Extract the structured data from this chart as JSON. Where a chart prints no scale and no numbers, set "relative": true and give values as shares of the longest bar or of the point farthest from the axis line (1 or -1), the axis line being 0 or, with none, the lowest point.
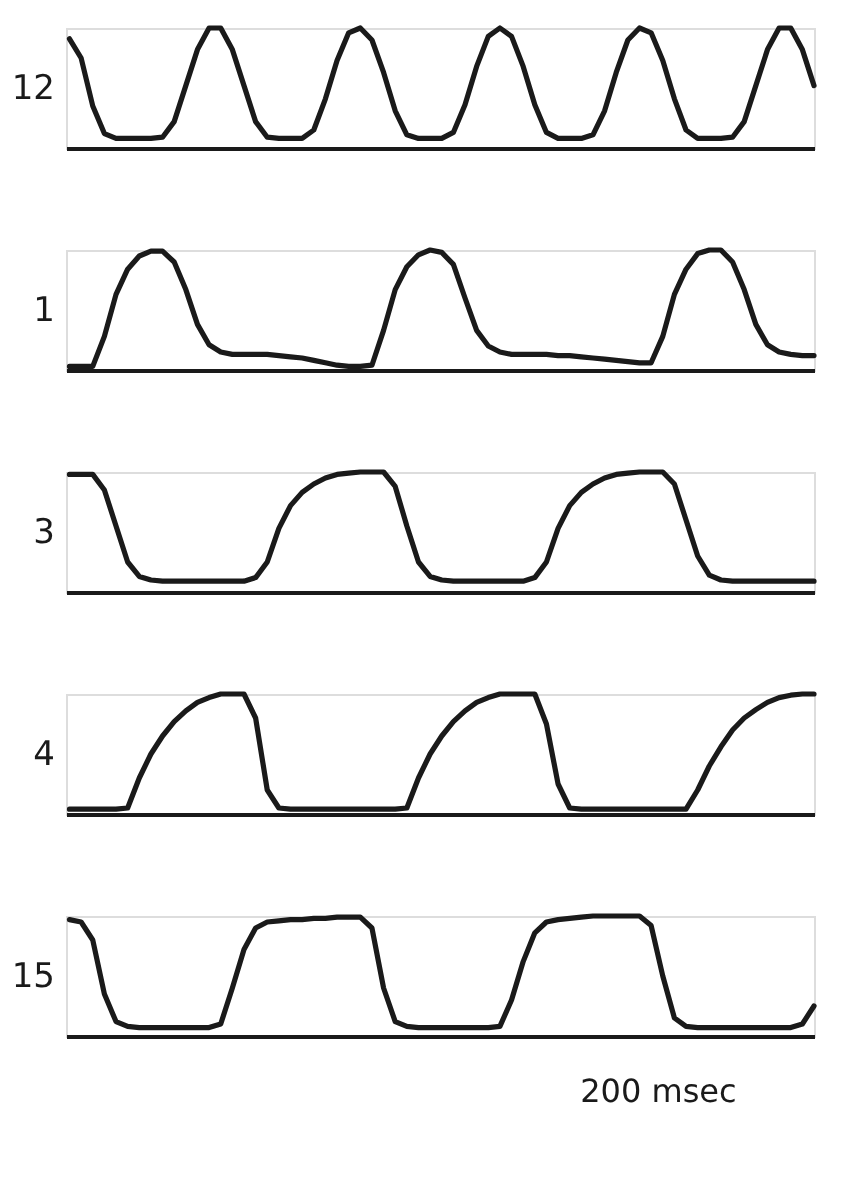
{
  "chart_data": [
    {
      "type": "line",
      "relative": true,
      "ylabel": "12",
      "tick_labels": false,
      "grid": false,
      "categories": [
        null,
        null,
        null,
        null,
        null,
        null,
        null,
        null,
        null,
        null,
        null,
        null,
        null,
        null,
        null,
        null,
        null,
        null,
        null,
        null,
        null,
        null,
        null,
        null,
        null,
        null,
        null,
        null,
        null,
        null,
        null,
        null,
        null,
        null,
        null,
        null,
        null,
        null,
        null,
        null,
        null,
        null,
        null,
        null,
        null,
        null,
        null,
        null,
        null,
        null,
        null,
        null,
        null,
        null,
        null,
        null,
        null,
        null,
        null,
        null,
        null,
        null,
        null,
        null,
        null
      ],
      "series": [
        {
          "color": "#1a1a1a",
          "values": [
            0.91,
            0.75,
            0.35,
            0.12,
            0.08,
            0.08,
            0.08,
            0.08,
            0.09,
            0.22,
            0.52,
            0.82,
            1.0,
            1.0,
            0.82,
            0.52,
            0.22,
            0.09,
            0.08,
            0.08,
            0.08,
            0.15,
            0.41,
            0.73,
            0.96,
            1.0,
            0.9,
            0.63,
            0.31,
            0.11,
            0.08,
            0.08,
            0.08,
            0.13,
            0.36,
            0.68,
            0.93,
            1.0,
            0.93,
            0.68,
            0.36,
            0.13,
            0.08,
            0.08,
            0.08,
            0.11,
            0.31,
            0.63,
            0.9,
            1.0,
            0.96,
            0.73,
            0.41,
            0.15,
            0.08,
            0.08,
            0.08,
            0.09,
            0.22,
            0.52,
            0.82,
            1.0,
            1.0,
            0.82,
            0.52
          ]
        }
      ]
    },
    {
      "type": "line",
      "relative": true,
      "ylabel": "1",
      "tick_labels": false,
      "grid": false,
      "categories": [
        null,
        null,
        null,
        null,
        null,
        null,
        null,
        null,
        null,
        null,
        null,
        null,
        null,
        null,
        null,
        null,
        null,
        null,
        null,
        null,
        null,
        null,
        null,
        null,
        null,
        null,
        null,
        null,
        null,
        null,
        null,
        null,
        null,
        null,
        null,
        null,
        null,
        null,
        null,
        null,
        null,
        null,
        null,
        null,
        null,
        null,
        null,
        null,
        null,
        null,
        null,
        null,
        null,
        null,
        null,
        null,
        null,
        null,
        null,
        null,
        null,
        null,
        null,
        null,
        null
      ],
      "series": [
        {
          "color": "#1a1a1a",
          "values": [
            0.03,
            0.03,
            0.03,
            0.28,
            0.63,
            0.84,
            0.95,
            0.99,
            0.99,
            0.9,
            0.67,
            0.38,
            0.21,
            0.15,
            0.13,
            0.13,
            0.13,
            0.13,
            0.12,
            0.11,
            0.1,
            0.08,
            0.06,
            0.04,
            0.03,
            0.03,
            0.04,
            0.33,
            0.67,
            0.86,
            0.96,
            1.0,
            0.98,
            0.88,
            0.6,
            0.33,
            0.2,
            0.15,
            0.13,
            0.13,
            0.13,
            0.13,
            0.12,
            0.12,
            0.11,
            0.1,
            0.09,
            0.08,
            0.07,
            0.06,
            0.06,
            0.28,
            0.63,
            0.84,
            0.97,
            1.0,
            1.0,
            0.9,
            0.67,
            0.38,
            0.21,
            0.15,
            0.13,
            0.12,
            0.12
          ]
        }
      ]
    },
    {
      "type": "line",
      "relative": true,
      "ylabel": "3",
      "tick_labels": false,
      "grid": false,
      "categories": [
        null,
        null,
        null,
        null,
        null,
        null,
        null,
        null,
        null,
        null,
        null,
        null,
        null,
        null,
        null,
        null,
        null,
        null,
        null,
        null,
        null,
        null,
        null,
        null,
        null,
        null,
        null,
        null,
        null,
        null,
        null,
        null,
        null,
        null,
        null,
        null,
        null,
        null,
        null,
        null,
        null,
        null,
        null,
        null,
        null,
        null,
        null,
        null,
        null,
        null,
        null,
        null,
        null,
        null,
        null,
        null,
        null,
        null,
        null,
        null,
        null,
        null,
        null,
        null,
        null
      ],
      "series": [
        {
          "color": "#1a1a1a",
          "values": [
            0.98,
            0.98,
            0.98,
            0.85,
            0.55,
            0.25,
            0.13,
            0.1,
            0.09,
            0.09,
            0.09,
            0.09,
            0.09,
            0.09,
            0.09,
            0.09,
            0.12,
            0.25,
            0.53,
            0.72,
            0.83,
            0.9,
            0.95,
            0.98,
            0.99,
            1.0,
            1.0,
            1.0,
            0.88,
            0.55,
            0.25,
            0.13,
            0.1,
            0.09,
            0.09,
            0.09,
            0.09,
            0.09,
            0.09,
            0.09,
            0.12,
            0.25,
            0.53,
            0.72,
            0.83,
            0.9,
            0.95,
            0.98,
            0.99,
            1.0,
            1.0,
            1.0,
            0.9,
            0.6,
            0.3,
            0.14,
            0.1,
            0.09,
            0.09,
            0.09,
            0.09,
            0.09,
            0.09,
            0.09,
            0.09
          ]
        }
      ]
    },
    {
      "type": "line",
      "relative": true,
      "ylabel": "4",
      "tick_labels": false,
      "grid": false,
      "categories": [
        null,
        null,
        null,
        null,
        null,
        null,
        null,
        null,
        null,
        null,
        null,
        null,
        null,
        null,
        null,
        null,
        null,
        null,
        null,
        null,
        null,
        null,
        null,
        null,
        null,
        null,
        null,
        null,
        null,
        null,
        null,
        null,
        null,
        null,
        null,
        null,
        null,
        null,
        null,
        null,
        null,
        null,
        null,
        null,
        null,
        null,
        null,
        null,
        null,
        null,
        null,
        null,
        null,
        null,
        null,
        null,
        null,
        null,
        null,
        null,
        null,
        null,
        null,
        null,
        null
      ],
      "series": [
        {
          "color": "#1a1a1a",
          "values": [
            0.04,
            0.04,
            0.04,
            0.04,
            0.04,
            0.05,
            0.3,
            0.5,
            0.65,
            0.77,
            0.86,
            0.93,
            0.97,
            1.0,
            1.0,
            1.0,
            0.8,
            0.2,
            0.05,
            0.04,
            0.04,
            0.04,
            0.04,
            0.04,
            0.04,
            0.04,
            0.04,
            0.04,
            0.04,
            0.05,
            0.3,
            0.5,
            0.65,
            0.77,
            0.86,
            0.93,
            0.97,
            1.0,
            1.0,
            1.0,
            1.0,
            0.75,
            0.25,
            0.05,
            0.04,
            0.04,
            0.04,
            0.04,
            0.04,
            0.04,
            0.04,
            0.04,
            0.04,
            0.04,
            0.2,
            0.4,
            0.56,
            0.7,
            0.8,
            0.87,
            0.93,
            0.97,
            0.99,
            1.0,
            1.0
          ]
        }
      ]
    },
    {
      "type": "line",
      "relative": true,
      "ylabel": "15",
      "tick_labels": false,
      "grid": false,
      "annotations": [
        "200 msec"
      ],
      "categories": [
        null,
        null,
        null,
        null,
        null,
        null,
        null,
        null,
        null,
        null,
        null,
        null,
        null,
        null,
        null,
        null,
        null,
        null,
        null,
        null,
        null,
        null,
        null,
        null,
        null,
        null,
        null,
        null,
        null,
        null,
        null,
        null,
        null,
        null,
        null,
        null,
        null,
        null,
        null,
        null,
        null,
        null,
        null,
        null,
        null,
        null,
        null,
        null,
        null,
        null,
        null,
        null,
        null,
        null,
        null,
        null,
        null,
        null,
        null,
        null,
        null,
        null,
        null,
        null,
        null
      ],
      "series": [
        {
          "color": "#1a1a1a",
          "values": [
            0.97,
            0.95,
            0.8,
            0.35,
            0.12,
            0.08,
            0.07,
            0.07,
            0.07,
            0.07,
            0.07,
            0.07,
            0.07,
            0.1,
            0.4,
            0.72,
            0.9,
            0.95,
            0.96,
            0.97,
            0.97,
            0.98,
            0.98,
            0.99,
            0.99,
            0.99,
            0.9,
            0.4,
            0.12,
            0.08,
            0.07,
            0.07,
            0.07,
            0.07,
            0.07,
            0.07,
            0.07,
            0.08,
            0.3,
            0.62,
            0.86,
            0.95,
            0.97,
            0.98,
            0.99,
            1.0,
            1.0,
            1.0,
            1.0,
            1.0,
            0.92,
            0.5,
            0.15,
            0.08,
            0.07,
            0.07,
            0.07,
            0.07,
            0.07,
            0.07,
            0.07,
            0.07,
            0.07,
            0.1,
            0.25
          ]
        }
      ]
    }
  ]
}
